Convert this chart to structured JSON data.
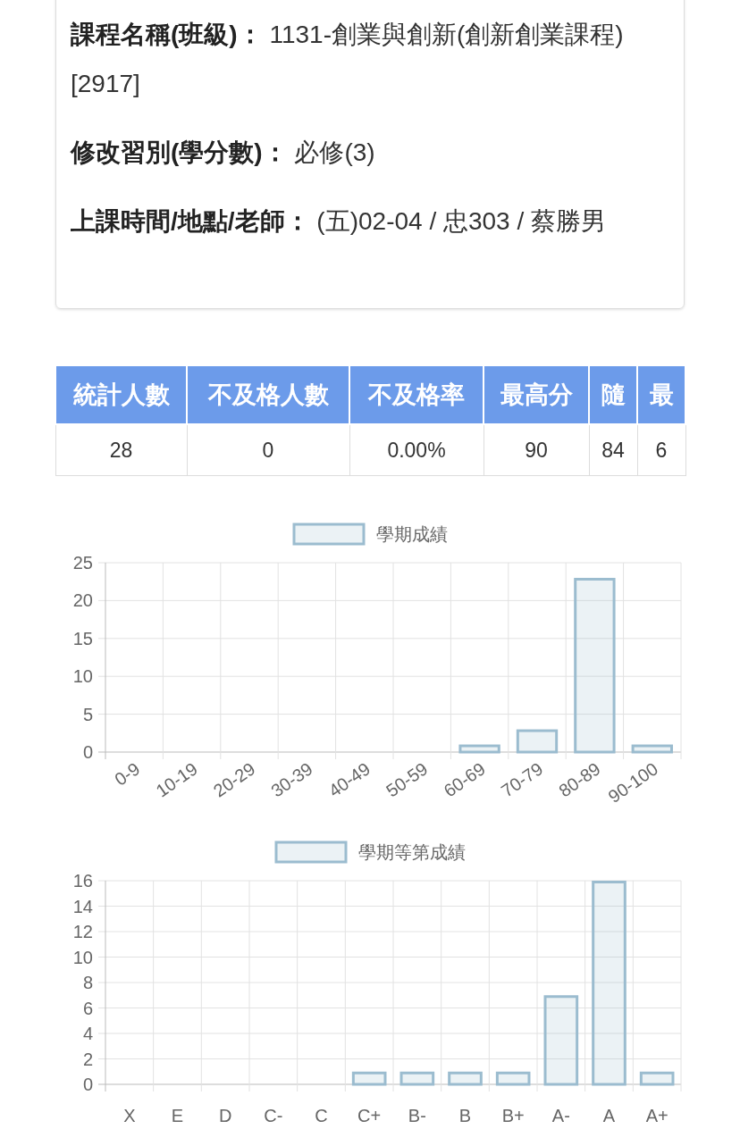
{
  "chart_data": [
    {
      "type": "other",
      "annotations": [
        "課程名稱(班級)：",
        "1131-創業與創新(創新創業課程)[2917]",
        "修改習別(學分數)：",
        "必修(3)",
        "上課時間/地點/老師：",
        "(五)02-04 / 忠303 / 蔡勝男"
      ]
    },
    {
      "type": "other",
      "categories": [
        "統計人數",
        "不及格人數",
        "不及格率",
        "最高分",
        "隨",
        "最"
      ],
      "annotations": [
        "28",
        "0",
        "0.00%",
        "90",
        "84",
        "6"
      ]
    },
    {
      "type": "bar",
      "categories": [
        "0-9",
        "10-19",
        "20-29",
        "30-39",
        "40-49",
        "50-59",
        "60-69",
        "70-79",
        "80-89",
        "90-100"
      ],
      "series": [
        {
          "name": "學期成績",
          "color": "#9bbccf",
          "values": [
            0,
            0,
            0,
            0,
            0,
            0,
            1,
            3,
            23,
            1
          ]
        }
      ],
      "ylim": [
        0,
        25
      ],
      "yticks": [
        0,
        5,
        10,
        15,
        20,
        25
      ],
      "grid": true,
      "legend": "top"
    },
    {
      "type": "bar",
      "categories": [
        "X",
        "E",
        "D",
        "C-",
        "C",
        "C+",
        "B-",
        "B",
        "B+",
        "A-",
        "A",
        "A+"
      ],
      "series": [
        {
          "name": "學期等第成績",
          "color": "#9bbccf",
          "values": [
            0,
            0,
            0,
            0,
            0,
            1,
            1,
            1,
            1,
            7,
            16,
            1
          ]
        }
      ],
      "ylim": [
        0,
        16
      ],
      "yticks": [
        0,
        2,
        4,
        6,
        8,
        10,
        12,
        14,
        16
      ],
      "grid": true,
      "legend": "top"
    }
  ]
}
